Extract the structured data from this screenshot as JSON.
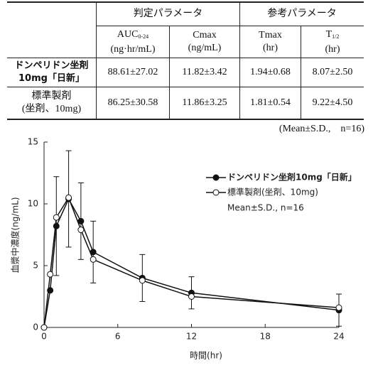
{
  "table": {
    "groups": [
      "判定パラメータ",
      "参考パラメータ"
    ],
    "columns": [
      {
        "name": "AUC",
        "sub": "0-24",
        "unit": "(ng·hr/mL)"
      },
      {
        "name": "Cmax",
        "unit": "(ng/mL)"
      },
      {
        "name": "Tmax",
        "unit": "(hr)"
      },
      {
        "name": "T",
        "sub": "1/2",
        "unit": "(hr)"
      }
    ],
    "rows": [
      {
        "label": [
          "ドンペリドン坐剤",
          "10mg「日新」"
        ],
        "cells": [
          "88.61±27.02",
          "11.82±3.42",
          "1.94±0.68",
          "8.07±2.50"
        ]
      },
      {
        "label": [
          "標準製剤",
          "(坐剤、10mg)"
        ],
        "cells": [
          "86.25±30.58",
          "11.86±3.25",
          "1.81±0.54",
          "9.22±4.50"
        ]
      }
    ],
    "note": "(Mean±S.D.,　n=16)"
  },
  "chart_data": {
    "type": "line",
    "x_label": "時間(hr)",
    "y_label": "血漿中濃度(ng/mL)",
    "x": [
      0,
      0.5,
      1,
      2,
      3,
      4,
      8,
      12,
      24
    ],
    "series": [
      {
        "name": "ドンペリドン坐剤10mg「日新」",
        "color": "#111111",
        "marker": "filled",
        "values": [
          0,
          3.0,
          8.2,
          10.4,
          8.6,
          6.1,
          4.0,
          2.8,
          1.4
        ],
        "errors": [
          null,
          null,
          4.0,
          3.9,
          3.1,
          2.5,
          1.9,
          1.3,
          1.3
        ]
      },
      {
        "name": "標準製剤(坐剤、10mg)",
        "color": "#111111",
        "marker": "open",
        "values": [
          0,
          4.3,
          8.9,
          10.5,
          7.9,
          5.5,
          3.8,
          2.5,
          1.6
        ]
      }
    ],
    "legend_note": "Mean±S.D., n=16",
    "xlim": [
      0,
      24
    ],
    "xticks": [
      0,
      6,
      12,
      18,
      24
    ],
    "ylim": [
      0,
      15
    ],
    "yticks": [
      0,
      5,
      10,
      15
    ]
  }
}
